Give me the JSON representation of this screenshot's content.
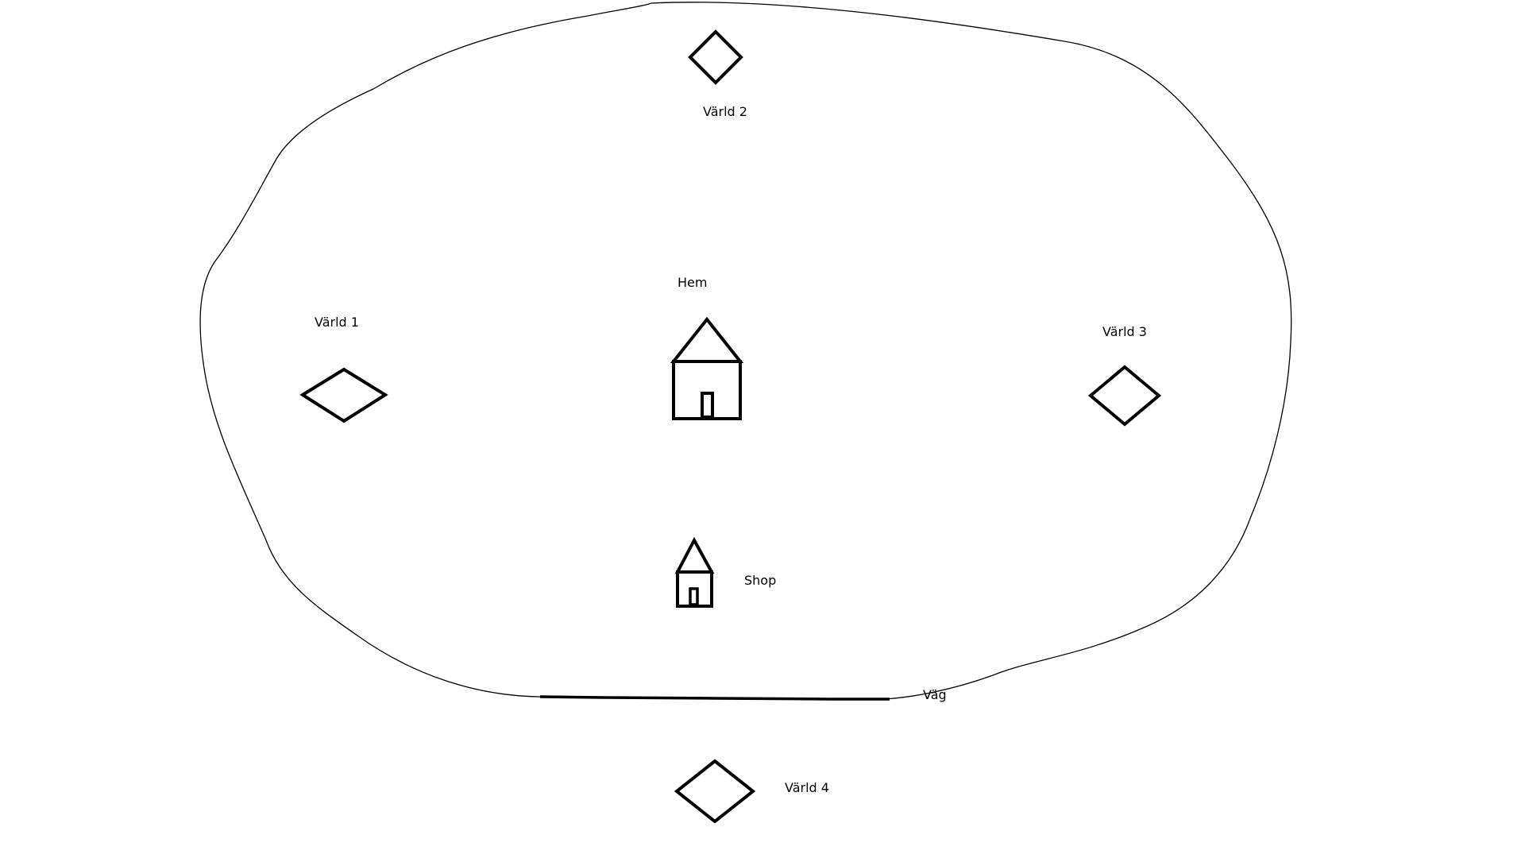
{
  "diagram": {
    "labels": {
      "world1": "Värld 1",
      "world2": "Värld 2",
      "world3": "Värld 3",
      "world4": "Värld 4",
      "home": "Hem",
      "shop": "Shop",
      "road": "Väg"
    },
    "icons": {
      "world": "diamond-icon",
      "home": "house-icon",
      "shop": "house-icon"
    },
    "colors": {
      "stroke": "#000000",
      "background": "#ffffff"
    }
  }
}
